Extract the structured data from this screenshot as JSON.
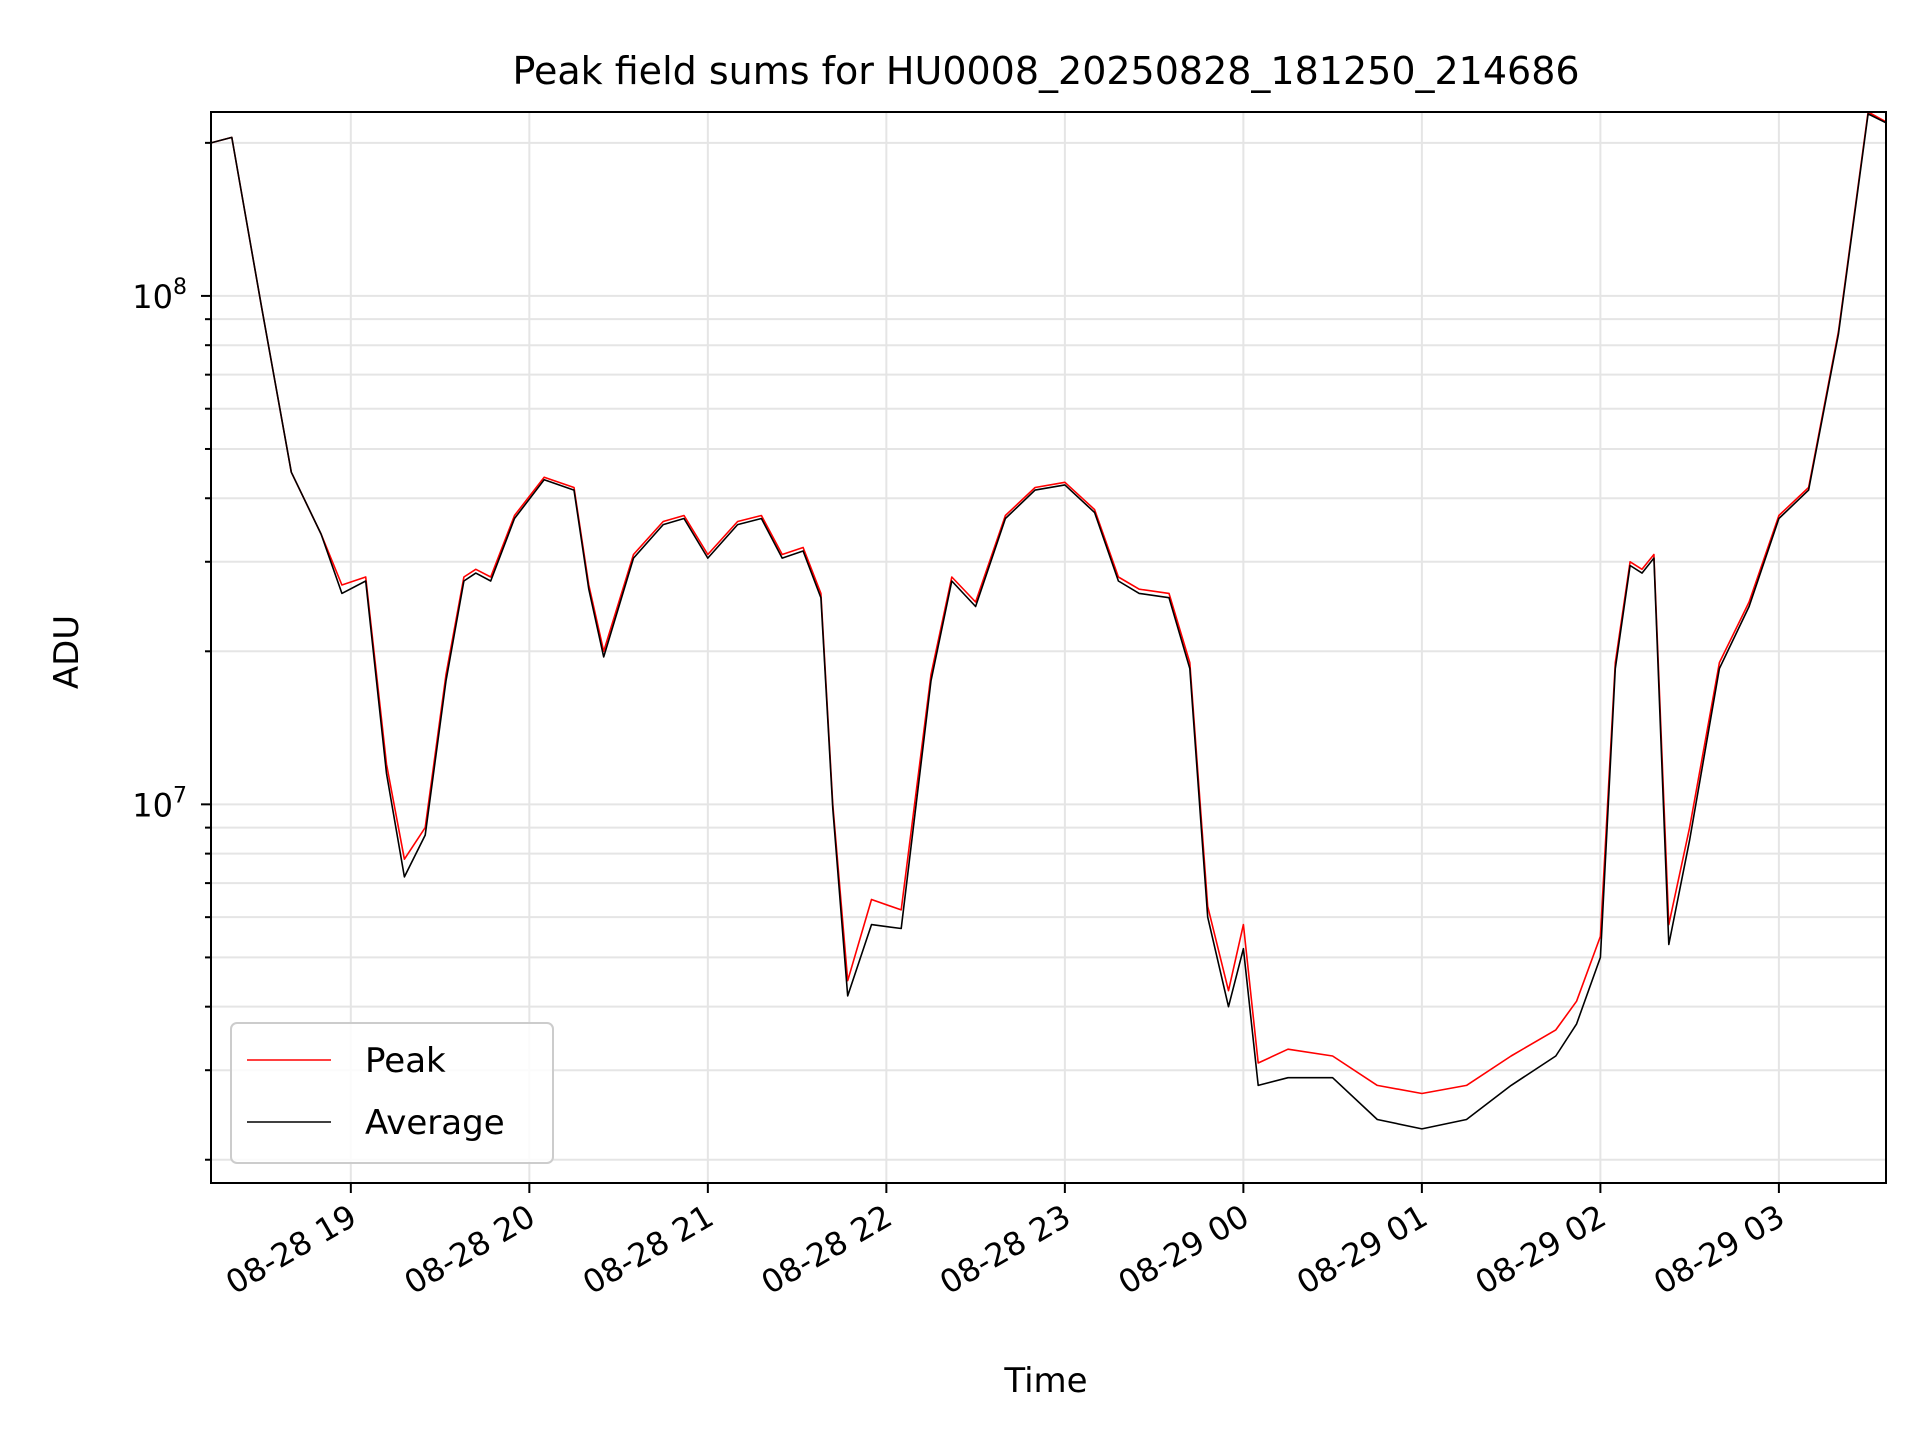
{
  "chart_data": {
    "type": "line",
    "title": "Peak field sums for HU0008_20250828_181250_214686",
    "xlabel": "Time",
    "ylabel": "ADU",
    "yscale": "log",
    "x_unit": "hours",
    "xlim": [
      "2025-08-28 18:13",
      "2025-08-29 03:36"
    ],
    "ylim": [
      1800000,
      230000000
    ],
    "grid": true,
    "legend_position": "lower-left",
    "x_tick_labels": [
      "08-28 19",
      "08-28 20",
      "08-28 21",
      "08-28 22",
      "08-28 23",
      "08-29 00",
      "08-29 01",
      "08-29 02",
      "08-29 03"
    ],
    "y_major_tick_labels": [
      {
        "base": "10",
        "exp": "7"
      },
      {
        "base": "10",
        "exp": "8"
      }
    ],
    "colors": {
      "Peak": "#ff0000",
      "Average": "#000000"
    },
    "x": [
      "2025-08-28 18:13",
      "2025-08-28 18:20",
      "2025-08-28 18:30",
      "2025-08-28 18:40",
      "2025-08-28 18:50",
      "2025-08-28 18:57",
      "2025-08-28 19:05",
      "2025-08-28 19:12",
      "2025-08-28 19:18",
      "2025-08-28 19:25",
      "2025-08-28 19:32",
      "2025-08-28 19:38",
      "2025-08-28 19:42",
      "2025-08-28 19:47",
      "2025-08-28 19:55",
      "2025-08-28 20:05",
      "2025-08-28 20:15",
      "2025-08-28 20:20",
      "2025-08-28 20:25",
      "2025-08-28 20:35",
      "2025-08-28 20:45",
      "2025-08-28 20:52",
      "2025-08-28 21:00",
      "2025-08-28 21:10",
      "2025-08-28 21:18",
      "2025-08-28 21:25",
      "2025-08-28 21:32",
      "2025-08-28 21:38",
      "2025-08-28 21:42",
      "2025-08-28 21:47",
      "2025-08-28 21:55",
      "2025-08-28 22:05",
      "2025-08-28 22:15",
      "2025-08-28 22:22",
      "2025-08-28 22:30",
      "2025-08-28 22:40",
      "2025-08-28 22:50",
      "2025-08-28 23:00",
      "2025-08-28 23:10",
      "2025-08-28 23:18",
      "2025-08-28 23:25",
      "2025-08-28 23:35",
      "2025-08-28 23:42",
      "2025-08-28 23:48",
      "2025-08-28 23:55",
      "2025-08-29 00:00",
      "2025-08-29 00:05",
      "2025-08-29 00:15",
      "2025-08-29 00:30",
      "2025-08-29 00:45",
      "2025-08-29 01:00",
      "2025-08-29 01:15",
      "2025-08-29 01:30",
      "2025-08-29 01:45",
      "2025-08-29 01:52",
      "2025-08-29 02:00",
      "2025-08-29 02:05",
      "2025-08-29 02:10",
      "2025-08-29 02:14",
      "2025-08-29 02:18",
      "2025-08-29 02:23",
      "2025-08-29 02:30",
      "2025-08-29 02:40",
      "2025-08-29 02:50",
      "2025-08-29 03:00",
      "2025-08-29 03:10",
      "2025-08-29 03:20",
      "2025-08-29 03:30",
      "2025-08-29 03:36"
    ],
    "series": [
      {
        "name": "Peak",
        "values": [
          200000000,
          205000000,
          95000000,
          45000000,
          34000000,
          27000000,
          28000000,
          12000000,
          7800000,
          9000000,
          18000000,
          28000000,
          29000000,
          28000000,
          37000000,
          44000000,
          42000000,
          27000000,
          20000000,
          31000000,
          36000000,
          37000000,
          31000000,
          36000000,
          37000000,
          31000000,
          32000000,
          26000000,
          10000000,
          4500000,
          6500000,
          6200000,
          18000000,
          28000000,
          25000000,
          37000000,
          42000000,
          43000000,
          38000000,
          28000000,
          26500000,
          26000000,
          19000000,
          6300000,
          4300000,
          5800000,
          3100000,
          3300000,
          3200000,
          2800000,
          2700000,
          2800000,
          3200000,
          3600000,
          4100000,
          5500000,
          19000000,
          30000000,
          29000000,
          31000000,
          5800000,
          9000000,
          19000000,
          25000000,
          37000000,
          42000000,
          85000000,
          230000000,
          220000000
        ]
      },
      {
        "name": "Average",
        "values": [
          200000000,
          205000000,
          95000000,
          45000000,
          34000000,
          26000000,
          27500000,
          11500000,
          7200000,
          8700000,
          17500000,
          27500000,
          28500000,
          27500000,
          36500000,
          43500000,
          41500000,
          26500000,
          19500000,
          30500000,
          35500000,
          36500000,
          30500000,
          35500000,
          36500000,
          30500000,
          31500000,
          25500000,
          9800000,
          4200000,
          5800000,
          5700000,
          17500000,
          27500000,
          24500000,
          36500000,
          41500000,
          42500000,
          37500000,
          27500000,
          26000000,
          25500000,
          18500000,
          6000000,
          4000000,
          5200000,
          2800000,
          2900000,
          2900000,
          2400000,
          2300000,
          2400000,
          2800000,
          3200000,
          3700000,
          5000000,
          18500000,
          29500000,
          28500000,
          30500000,
          5300000,
          8500000,
          18500000,
          24500000,
          36500000,
          41500000,
          84000000,
          228000000,
          219000000
        ]
      }
    ]
  }
}
